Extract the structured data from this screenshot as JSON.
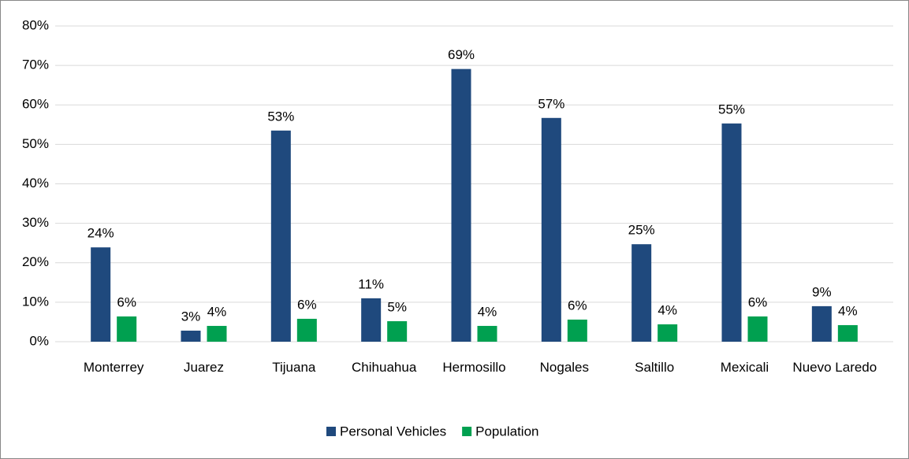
{
  "chart_data": {
    "type": "bar",
    "categories": [
      "Monterrey",
      "Juarez",
      "Tijuana",
      "Chihuahua",
      "Hermosillo",
      "Nogales",
      "Saltillo",
      "Mexicali",
      "Nuevo Laredo"
    ],
    "series": [
      {
        "name": "Personal Vehicles",
        "color": "#1f497d",
        "values": [
          23.9,
          2.8,
          53.5,
          11.0,
          69.1,
          56.7,
          24.7,
          55.3,
          9.0
        ],
        "value_labels": [
          "24%",
          "3%",
          "53%",
          "11%",
          "69%",
          "57%",
          "25%",
          "55%",
          "9%"
        ]
      },
      {
        "name": "Population",
        "color": "#00a050",
        "values": [
          6.4,
          4.0,
          5.8,
          5.2,
          4.0,
          5.6,
          4.4,
          6.4,
          4.2
        ],
        "value_labels": [
          "6%",
          "4%",
          "6%",
          "5%",
          "4%",
          "6%",
          "4%",
          "6%",
          "4%"
        ]
      }
    ],
    "ylim": [
      0,
      80
    ],
    "yticks": [
      {
        "value": 0,
        "label": "0%"
      },
      {
        "value": 10,
        "label": "10%"
      },
      {
        "value": 20,
        "label": "20%"
      },
      {
        "value": 30,
        "label": "30%"
      },
      {
        "value": 40,
        "label": "40%"
      },
      {
        "value": 50,
        "label": "50%"
      },
      {
        "value": 60,
        "label": "60%"
      },
      {
        "value": 70,
        "label": "70%"
      },
      {
        "value": 80,
        "label": "80%"
      }
    ],
    "grid": true,
    "legend": "bottom"
  }
}
